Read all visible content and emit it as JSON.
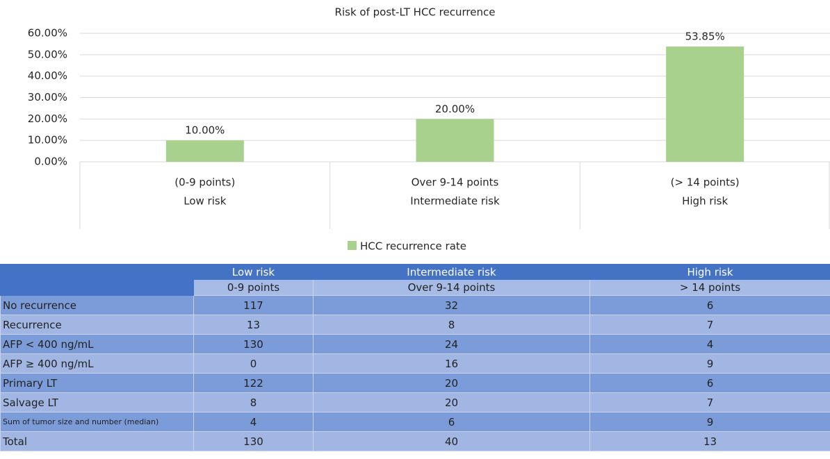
{
  "chart_data": {
    "type": "bar",
    "title": "Risk of post-LT HCC recurrence",
    "categories": [
      [
        "(0-9 points)",
        "Low risk"
      ],
      [
        "Over 9-14 points",
        "Intermediate risk"
      ],
      [
        "(> 14 points)",
        "High risk"
      ]
    ],
    "series": [
      {
        "name": "HCC recurrence rate",
        "color": "#a9d18e",
        "values": [
          10,
          20,
          53.85
        ],
        "value_labels": [
          "10.00%",
          "20.00%",
          "53.85%"
        ]
      }
    ],
    "ylim": [
      0,
      60
    ],
    "yticks": [
      {
        "value": 0,
        "label": "0.00%"
      },
      {
        "value": 10,
        "label": "10.00%"
      },
      {
        "value": 20,
        "label": "20.00%"
      },
      {
        "value": 30,
        "label": "30.00%"
      },
      {
        "value": 40,
        "label": "40.00%"
      },
      {
        "value": 50,
        "label": "50.00%"
      },
      {
        "value": 60,
        "label": "60.00%"
      }
    ],
    "grid": true,
    "legend": "bottom"
  },
  "table": {
    "groups": [
      "Low risk",
      "Intermediate risk",
      "High risk"
    ],
    "subheaders": [
      "0-9 points",
      "Over 9-14 points",
      "> 14 points"
    ],
    "rows": [
      [
        "No recurrence",
        117,
        32,
        6
      ],
      [
        "Recurrence",
        13,
        8,
        7
      ],
      [
        "AFP < 400 ng/mL",
        130,
        24,
        4
      ],
      [
        "AFP ≥ 400 ng/mL",
        0,
        16,
        9
      ],
      [
        "Primary LT",
        122,
        20,
        6
      ],
      [
        "Salvage LT",
        8,
        20,
        7
      ],
      [
        "Sum of tumor size and number (median)",
        4,
        6,
        9
      ],
      [
        "Total",
        130,
        40,
        13
      ]
    ]
  }
}
